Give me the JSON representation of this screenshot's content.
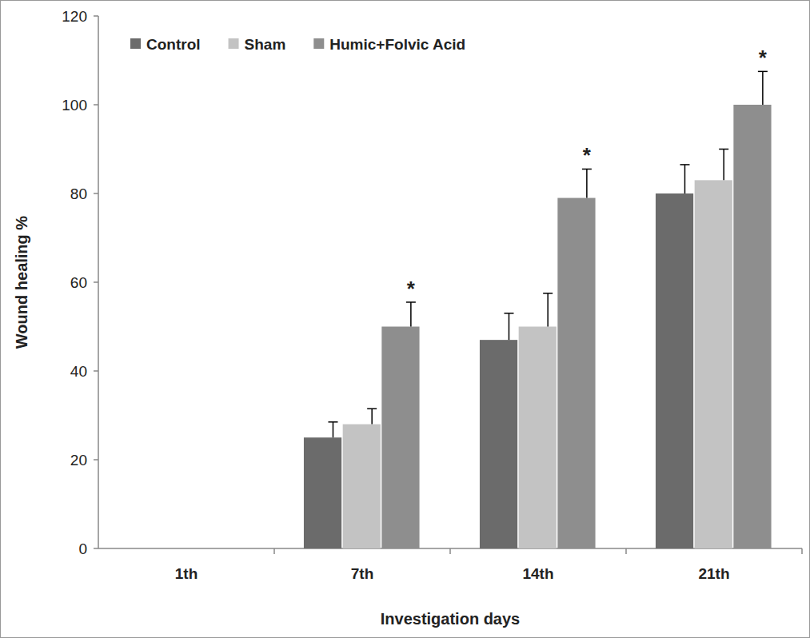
{
  "chart_data": {
    "type": "bar",
    "x_label": "Investigation days",
    "y_label": "Wound healing %",
    "categories": [
      "1th",
      "7th",
      "14th",
      "21th"
    ],
    "series": [
      {
        "name": "Control",
        "color": "#6b6b6b",
        "values": [
          0,
          25,
          47,
          80
        ],
        "errors": [
          0,
          3.5,
          6,
          6.5
        ]
      },
      {
        "name": "Sham",
        "color": "#c3c3c3",
        "values": [
          0,
          28,
          50,
          83
        ],
        "errors": [
          0,
          3.5,
          7.5,
          7
        ]
      },
      {
        "name": "Humic+Folvic Acid",
        "color": "#8e8e8e",
        "values": [
          0,
          50,
          79,
          100
        ],
        "errors": [
          0,
          5.5,
          6.5,
          7.5
        ]
      }
    ],
    "annotations": [
      {
        "text": "*",
        "category": "7th",
        "series": "Humic+Folvic Acid"
      },
      {
        "text": "*",
        "category": "14th",
        "series": "Humic+Folvic Acid"
      },
      {
        "text": "*",
        "category": "21th",
        "series": "Humic+Folvic Acid"
      }
    ],
    "ylim": [
      0,
      120
    ],
    "yticks": [
      0,
      20,
      40,
      60,
      80,
      100,
      120
    ],
    "grid": false,
    "legend": "top-left"
  }
}
